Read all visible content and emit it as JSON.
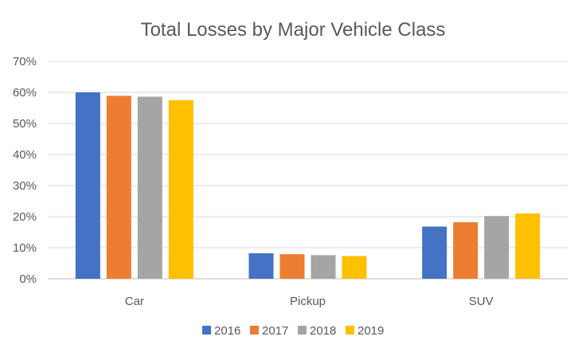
{
  "chart_data": {
    "type": "bar",
    "title": "Total Losses by Major Vehicle Class",
    "xlabel": "",
    "ylabel": "",
    "categories": [
      "Car",
      "Pickup",
      "SUV"
    ],
    "series": [
      {
        "name": "2016",
        "color": "#4472C4",
        "values": [
          60.0,
          8.2,
          16.8
        ]
      },
      {
        "name": "2017",
        "color": "#ED7D31",
        "values": [
          58.9,
          7.9,
          18.2
        ]
      },
      {
        "name": "2018",
        "color": "#A5A5A5",
        "values": [
          58.6,
          7.6,
          20.2
        ]
      },
      {
        "name": "2019",
        "color": "#FFC000",
        "values": [
          57.5,
          7.3,
          21.0
        ]
      }
    ],
    "ylim": [
      0,
      70
    ],
    "yticks": [
      "0%",
      "10%",
      "20%",
      "30%",
      "40%",
      "50%",
      "60%",
      "70%"
    ],
    "grid": true,
    "legend_position": "bottom"
  }
}
